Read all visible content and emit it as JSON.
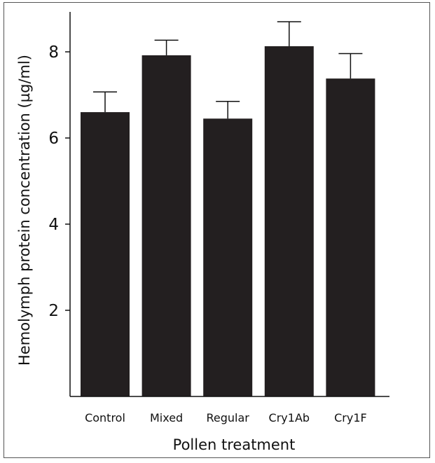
{
  "chart_data": {
    "type": "bar",
    "title": "",
    "xlabel": "Pollen treatment",
    "ylabel": "Hemolymph protein concentration (µg/ml)",
    "categories": [
      "Control",
      "Mixed",
      "Regular",
      "Cry1Ab",
      "Cry1F"
    ],
    "values": [
      6.6,
      7.92,
      6.45,
      8.13,
      7.38
    ],
    "error_upper": [
      0.47,
      0.35,
      0.4,
      0.57,
      0.58
    ],
    "yticks": [
      2,
      4,
      6,
      8
    ],
    "ylim": [
      0,
      9.3
    ],
    "grid": false,
    "legend": "none",
    "bar_color": "#231f20"
  }
}
